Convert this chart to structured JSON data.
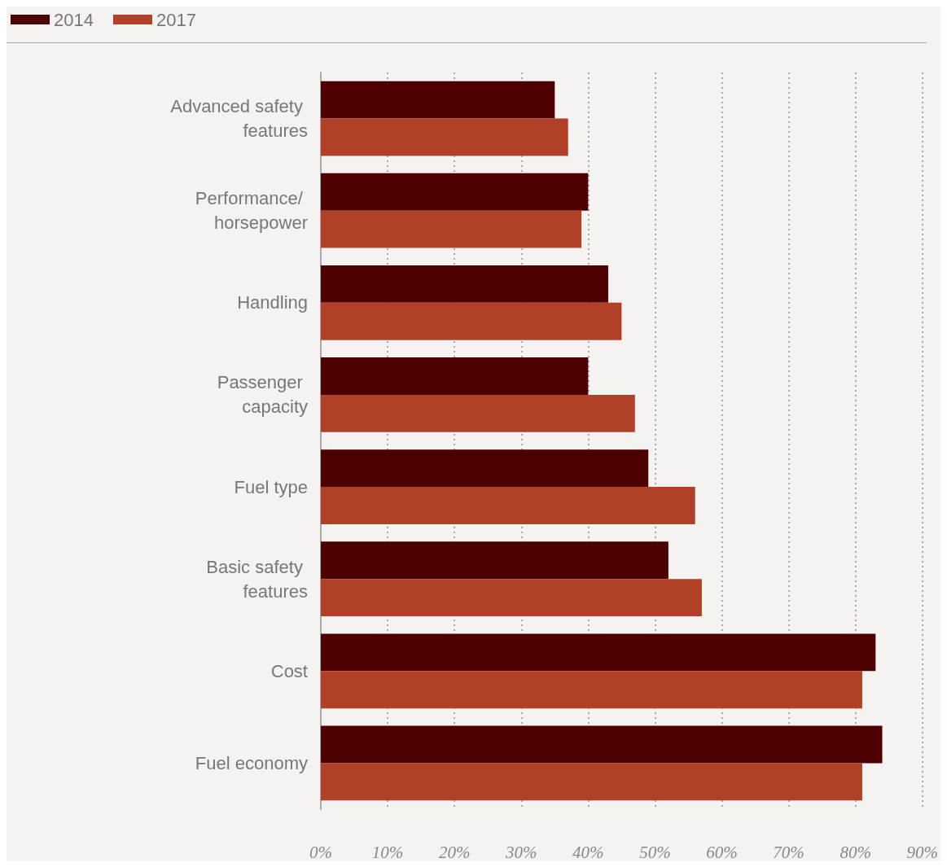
{
  "chart_data": {
    "type": "bar",
    "orientation": "horizontal",
    "categories": [
      "Advanced safety features",
      "Performance/ horsepower",
      "Handling",
      "Passenger capacity",
      "Fuel type",
      "Basic safety features",
      "Cost",
      "Fuel economy"
    ],
    "series": [
      {
        "name": "2014",
        "color": "#4d0000",
        "values": [
          35,
          40,
          43,
          40,
          49,
          52,
          83,
          84
        ]
      },
      {
        "name": "2017",
        "color": "#b04028",
        "values": [
          37,
          39,
          45,
          47,
          56,
          57,
          81,
          81
        ]
      }
    ],
    "xlim": [
      0,
      90
    ],
    "xticks": [
      {
        "value": 0,
        "label": "0%"
      },
      {
        "value": 10,
        "label": "10%"
      },
      {
        "value": 20,
        "label": "20%"
      },
      {
        "value": 30,
        "label": "30%"
      },
      {
        "value": 40,
        "label": "40%"
      },
      {
        "value": 50,
        "label": "50%"
      },
      {
        "value": 60,
        "label": "60%"
      },
      {
        "value": 70,
        "label": "70%"
      },
      {
        "value": 80,
        "label": "80%"
      },
      {
        "value": 90,
        "label": "90%"
      }
    ],
    "grid": "x",
    "legend": "top left"
  }
}
